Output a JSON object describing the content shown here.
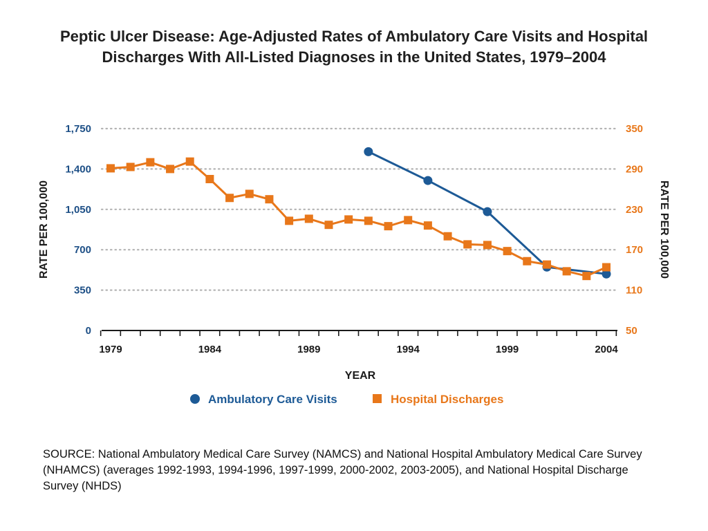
{
  "title": "Peptic Ulcer Disease:  Age-Adjusted Rates of Ambulatory Care Visits and Hospital Discharges With All-Listed Diagnoses in the United States, 1979–2004",
  "source": "SOURCE: National Ambulatory Medical Care Survey (NAMCS) and National Hospital Ambulatory Medical Care Survey (NHAMCS) (averages 1992-1993, 1994-1996, 1997-1999, 2000-2002, 2003-2005), and National Hospital Discharge Survey (NHDS)",
  "chart_data": {
    "type": "line",
    "title": "",
    "xlabel": "YEAR",
    "ylabel_left": "RATE PER 100,000",
    "ylabel_right": "RATE PER 100,000",
    "x_range": [
      1979,
      2004
    ],
    "x_tick_labels": [
      "1979",
      "1984",
      "1989",
      "1994",
      "1999",
      "2004"
    ],
    "y_left_range": [
      0,
      1750
    ],
    "y_left_ticks": [
      0,
      350,
      700,
      1050,
      1400,
      1750
    ],
    "y_left_tick_labels": [
      "0",
      "350",
      "700",
      "1,050",
      "1,400",
      "1,750"
    ],
    "y_right_range": [
      50,
      350
    ],
    "y_right_ticks": [
      50,
      110,
      170,
      230,
      290,
      350
    ],
    "y_right_tick_labels": [
      "50",
      "110",
      "170",
      "230",
      "290",
      "350"
    ],
    "grid": "horizontal dotted",
    "legend_position": "bottom",
    "series": [
      {
        "name": "Ambulatory Care Visits",
        "axis": "left",
        "color": "#1d5a96",
        "marker": "circle",
        "x": [
          1992,
          1995,
          1998,
          2001,
          2004
        ],
        "y": [
          1550,
          1300,
          1030,
          550,
          490
        ]
      },
      {
        "name": "Hospital Discharges",
        "axis": "right",
        "color": "#e8771a",
        "marker": "square",
        "x": [
          1979,
          1980,
          1981,
          1982,
          1983,
          1984,
          1985,
          1986,
          1987,
          1988,
          1989,
          1990,
          1991,
          1992,
          1993,
          1994,
          1995,
          1996,
          1997,
          1998,
          1999,
          2000,
          2001,
          2002,
          2003,
          2004
        ],
        "y": [
          291,
          293,
          300,
          290,
          301,
          275,
          247,
          253,
          245,
          213,
          216,
          207,
          215,
          213,
          205,
          214,
          206,
          190,
          178,
          177,
          168,
          153,
          148,
          138,
          131,
          144
        ]
      }
    ]
  }
}
